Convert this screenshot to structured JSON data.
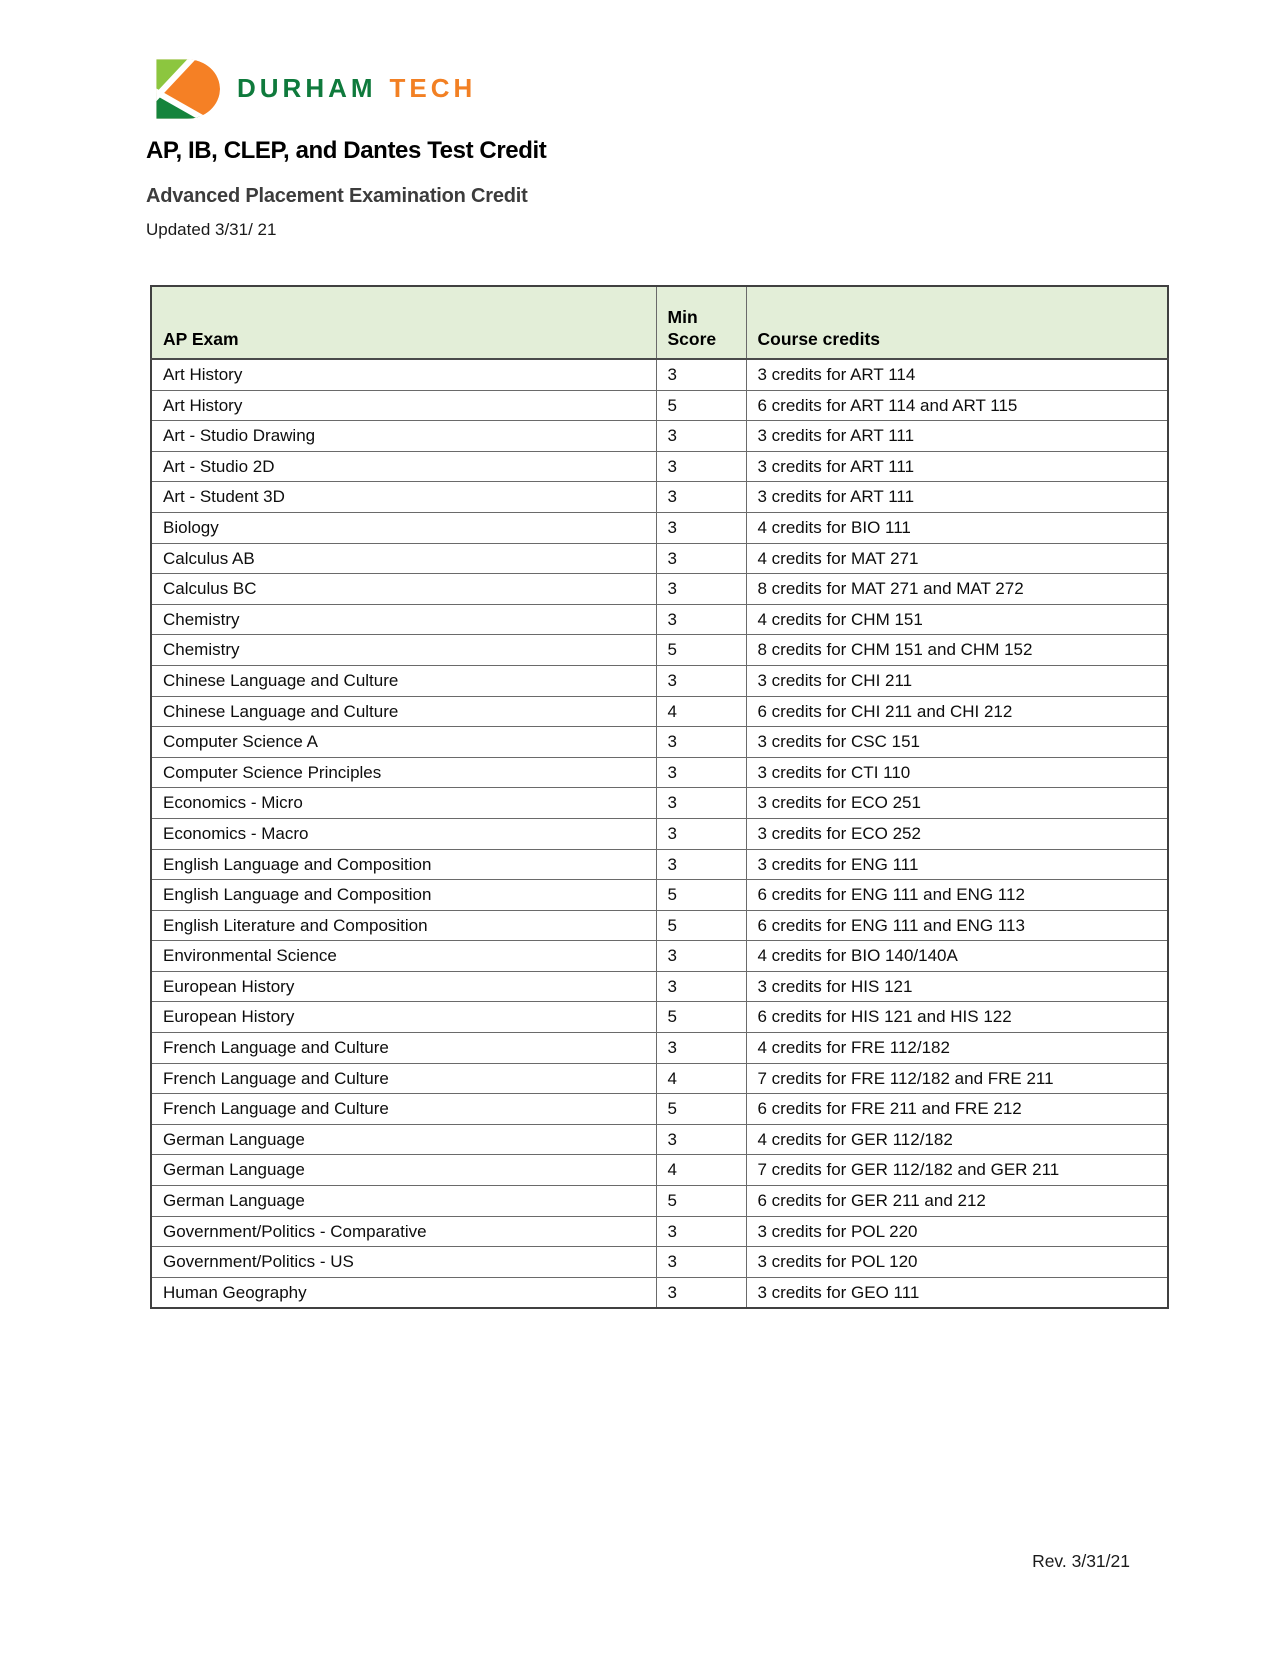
{
  "brand": {
    "name_primary": "DURHAM",
    "name_secondary": "TECH",
    "colors": {
      "wordmark_green": "#0f7a3c",
      "wordmark_orange": "#f28024",
      "logo_light_green": "#8cc63f",
      "logo_orange": "#f58025",
      "logo_dark_green": "#15843c",
      "table_header_bg": "#e3eed8"
    }
  },
  "header": {
    "title": "AP, IB, CLEP, and Dantes Test Credit",
    "subtitle": "Advanced Placement Examination Credit",
    "updated": "Updated 3/31/ 21"
  },
  "table": {
    "columns": [
      "AP Exam",
      "Min Score",
      "Course credits"
    ],
    "rows": [
      {
        "exam": "Art History",
        "score": "3",
        "credits": "3 credits for ART 114"
      },
      {
        "exam": "Art History",
        "score": "5",
        "credits": "6 credits for ART 114 and ART 115"
      },
      {
        "exam": "Art - Studio Drawing",
        "score": "3",
        "credits": "3 credits for ART 111"
      },
      {
        "exam": "Art - Studio 2D",
        "score": "3",
        "credits": "3 credits for ART 111"
      },
      {
        "exam": "Art - Student 3D",
        "score": "3",
        "credits": "3 credits for ART 111"
      },
      {
        "exam": "Biology",
        "score": "3",
        "credits": "4 credits for BIO 111"
      },
      {
        "exam": "Calculus AB",
        "score": "3",
        "credits": "4 credits for MAT 271"
      },
      {
        "exam": "Calculus BC",
        "score": "3",
        "credits": "8 credits for MAT 271 and MAT 272"
      },
      {
        "exam": "Chemistry",
        "score": "3",
        "credits": "4 credits for CHM 151"
      },
      {
        "exam": "Chemistry",
        "score": "5",
        "credits": "8 credits for CHM 151 and CHM 152"
      },
      {
        "exam": "Chinese Language and Culture",
        "score": "3",
        "credits": "3 credits for CHI 211"
      },
      {
        "exam": "Chinese Language and Culture",
        "score": "4",
        "credits": "6 credits for CHI 211 and CHI 212"
      },
      {
        "exam": "Computer Science A",
        "score": "3",
        "credits": "3 credits for CSC 151"
      },
      {
        "exam": "Computer Science Principles",
        "score": "3",
        "credits": "3 credits for CTI 110"
      },
      {
        "exam": "Economics - Micro",
        "score": "3",
        "credits": "3 credits for ECO 251"
      },
      {
        "exam": "Economics - Macro",
        "score": "3",
        "credits": "3 credits for ECO 252"
      },
      {
        "exam": "English Language and Composition",
        "score": "3",
        "credits": "3 credits for ENG 111"
      },
      {
        "exam": "English Language and Composition",
        "score": "5",
        "credits": "6 credits for ENG 111 and ENG 112"
      },
      {
        "exam": "English Literature and Composition",
        "score": "5",
        "credits": "6 credits for ENG 111 and ENG 113"
      },
      {
        "exam": "Environmental Science",
        "score": "3",
        "credits": "4 credits for BIO 140/140A"
      },
      {
        "exam": "European History",
        "score": "3",
        "credits": "3 credits for HIS 121"
      },
      {
        "exam": "European History",
        "score": "5",
        "credits": "6 credits for HIS 121 and HIS 122"
      },
      {
        "exam": "French Language and Culture",
        "score": "3",
        "credits": "4 credits for FRE 112/182"
      },
      {
        "exam": "French Language and Culture",
        "score": "4",
        "credits": "7 credits for FRE 112/182 and FRE 211"
      },
      {
        "exam": "French Language and Culture",
        "score": "5",
        "credits": "6 credits for FRE 211 and FRE 212"
      },
      {
        "exam": "German Language",
        "score": "3",
        "credits": "4 credits for GER 112/182"
      },
      {
        "exam": "German Language",
        "score": "4",
        "credits": "7 credits for GER 112/182 and GER 211"
      },
      {
        "exam": "German Language",
        "score": "5",
        "credits": "6 credits for GER 211 and 212"
      },
      {
        "exam": "Government/Politics - Comparative",
        "score": "3",
        "credits": "3 credits for POL 220"
      },
      {
        "exam": "Government/Politics - US",
        "score": "3",
        "credits": "3 credits for POL 120"
      },
      {
        "exam": "Human Geography",
        "score": "3",
        "credits": "3 credits for GEO 111"
      }
    ]
  },
  "footer": {
    "revision": "Rev. 3/31/21"
  }
}
